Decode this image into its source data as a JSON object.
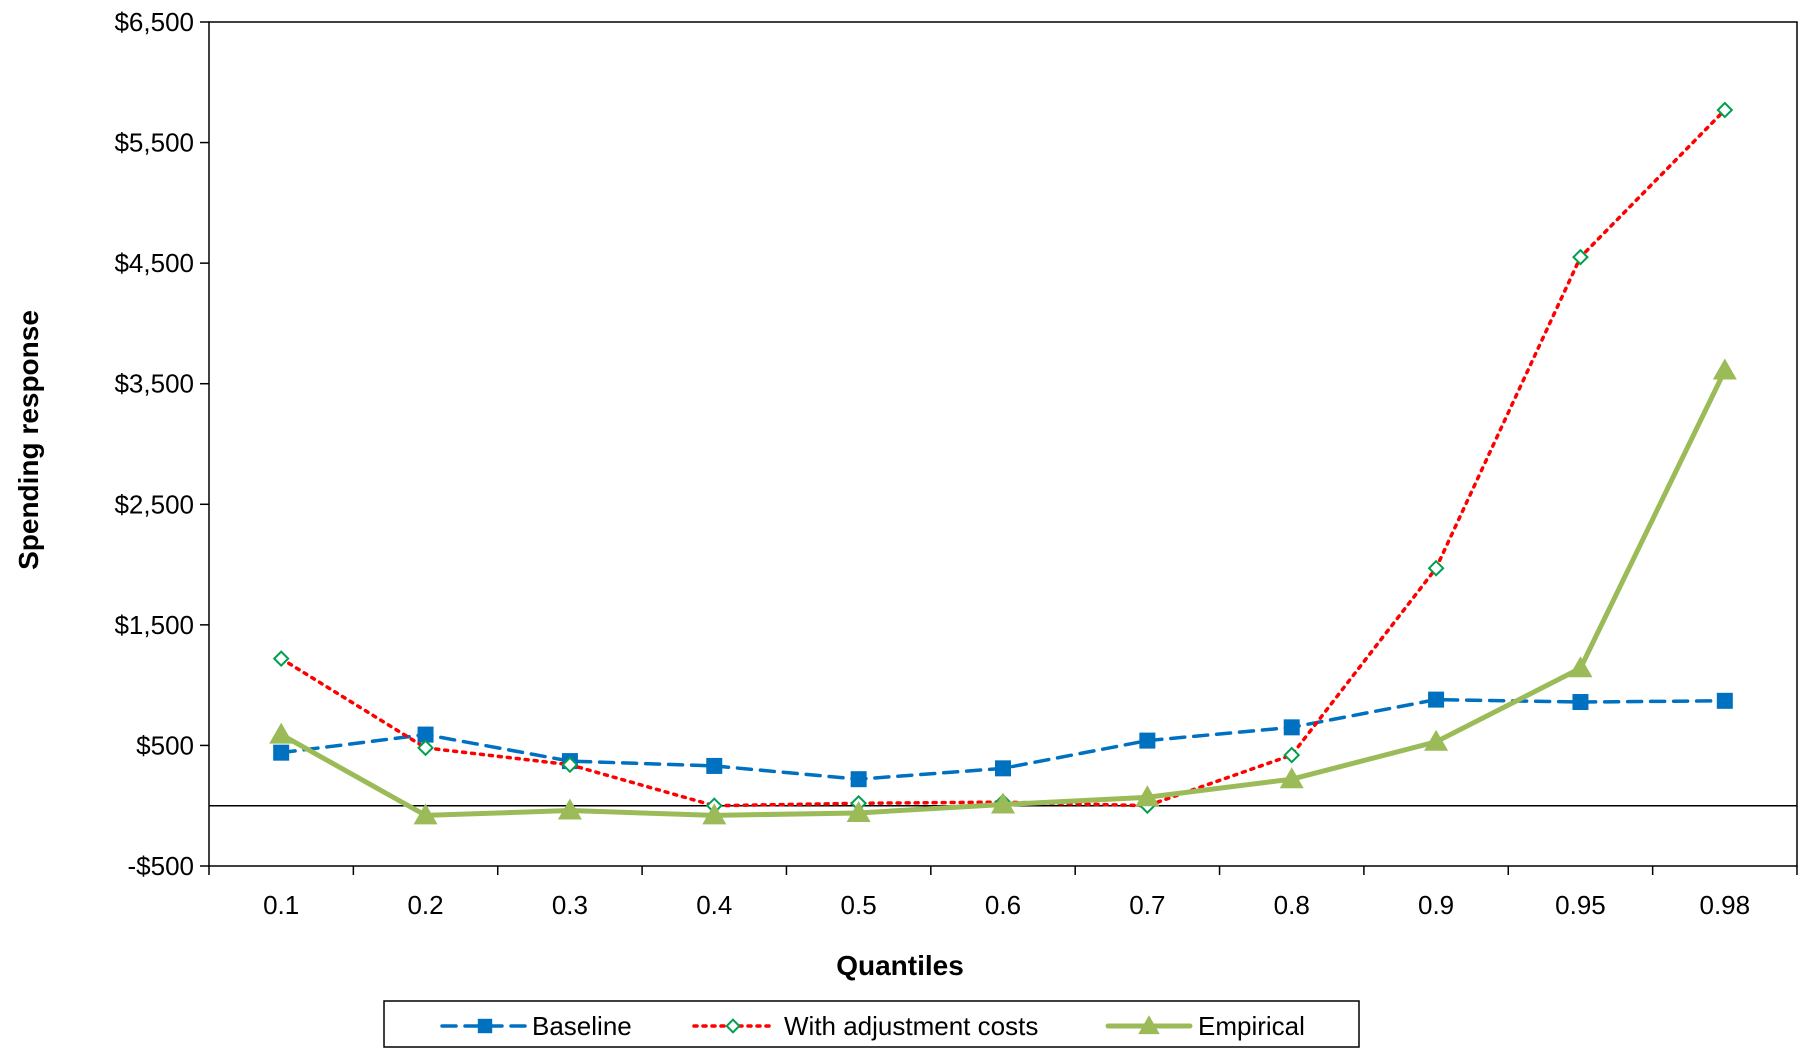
{
  "chart_data": {
    "type": "line",
    "title": "",
    "xlabel": "Quantiles",
    "ylabel": "Spending response",
    "categories": [
      "0.1",
      "0.2",
      "0.3",
      "0.4",
      "0.5",
      "0.6",
      "0.7",
      "0.8",
      "0.9",
      "0.95",
      "0.98"
    ],
    "ylim": [
      -500,
      6500
    ],
    "yticks": [
      -500,
      500,
      1500,
      2500,
      3500,
      4500,
      5500,
      6500
    ],
    "ytick_labels": [
      "-$500",
      "$500",
      "$1,500",
      "$2,500",
      "$3,500",
      "$4,500",
      "$5,500",
      "$6,500"
    ],
    "grid": false,
    "zero_line": true,
    "legend_position": "bottom",
    "series": [
      {
        "name": "Baseline",
        "style": "dashed",
        "marker": "square",
        "color": "#0070C0",
        "values": [
          440,
          590,
          370,
          330,
          220,
          310,
          540,
          650,
          880,
          860,
          870
        ]
      },
      {
        "name": "With adjustment costs",
        "style": "dotted",
        "marker": "diamond",
        "color": "#FF0000",
        "marker_color": "#00A050",
        "values": [
          1220,
          480,
          340,
          0,
          20,
          30,
          0,
          420,
          1970,
          4550,
          5770
        ]
      },
      {
        "name": "Empirical",
        "style": "solid",
        "marker": "triangle",
        "color": "#9BBB59",
        "values": [
          590,
          -80,
          -40,
          -80,
          -60,
          10,
          70,
          220,
          530,
          1140,
          3610
        ]
      }
    ]
  }
}
